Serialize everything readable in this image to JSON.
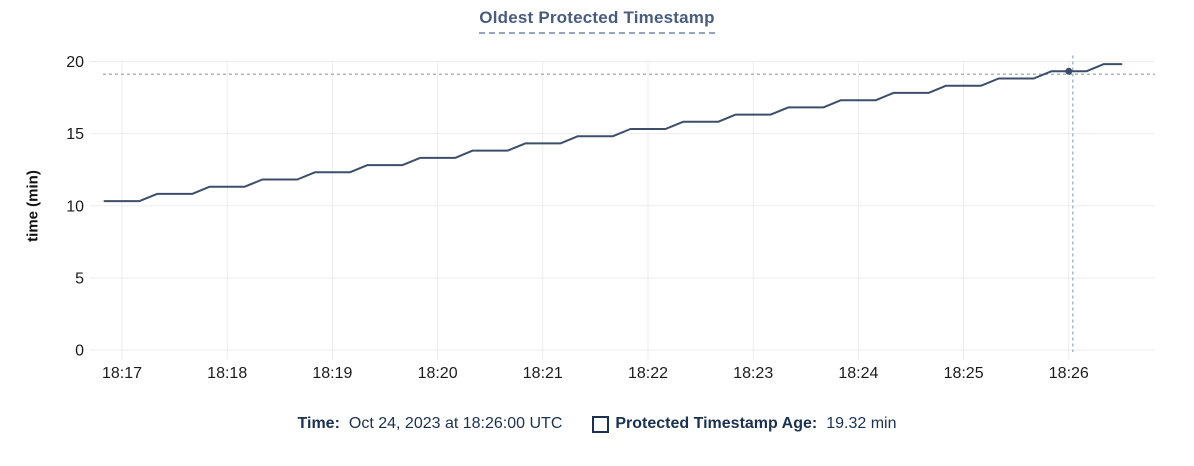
{
  "title": "Oldest Protected Timestamp",
  "y_axis_label": "time (min)",
  "legend": {
    "time_label": "Time:",
    "time_value": "Oct 24, 2023 at 18:26:00 UTC",
    "series_label": "Protected Timestamp Age:",
    "series_value": "19.32 min"
  },
  "colors": {
    "line": "#3d4e6c",
    "crosshair": "#a6b9c8",
    "grid": "#ededed",
    "title_text": "#4a5c7e",
    "title_underline": "#93a5c0",
    "legend_text": "#1b3150",
    "axis_text": "#1b1b1b"
  },
  "chart_data": {
    "type": "line",
    "title": "Oldest Protected Timestamp",
    "xlabel": "",
    "ylabel": "time (min)",
    "ylim": [
      0,
      20
    ],
    "y_ticks": [
      0,
      5,
      10,
      15,
      20
    ],
    "x_ticks": [
      "18:17",
      "18:18",
      "18:19",
      "18:20",
      "18:21",
      "18:22",
      "18:23",
      "18:24",
      "18:25",
      "18:26"
    ],
    "grid": true,
    "legend_position": "bottom",
    "series": [
      {
        "name": "Protected Timestamp Age",
        "unit": "min",
        "points": [
          [
            "18:16:50",
            10.32
          ],
          [
            "18:17:00",
            10.32
          ],
          [
            "18:17:10",
            10.32
          ],
          [
            "18:17:20",
            10.82
          ],
          [
            "18:17:30",
            10.82
          ],
          [
            "18:17:40",
            10.82
          ],
          [
            "18:17:50",
            11.32
          ],
          [
            "18:18:00",
            11.32
          ],
          [
            "18:18:10",
            11.32
          ],
          [
            "18:18:20",
            11.82
          ],
          [
            "18:18:30",
            11.82
          ],
          [
            "18:18:40",
            11.82
          ],
          [
            "18:18:50",
            12.32
          ],
          [
            "18:19:00",
            12.32
          ],
          [
            "18:19:10",
            12.32
          ],
          [
            "18:19:20",
            12.82
          ],
          [
            "18:19:30",
            12.82
          ],
          [
            "18:19:40",
            12.82
          ],
          [
            "18:19:50",
            13.32
          ],
          [
            "18:20:00",
            13.32
          ],
          [
            "18:20:10",
            13.32
          ],
          [
            "18:20:20",
            13.82
          ],
          [
            "18:20:30",
            13.82
          ],
          [
            "18:20:40",
            13.82
          ],
          [
            "18:20:50",
            14.32
          ],
          [
            "18:21:00",
            14.32
          ],
          [
            "18:21:10",
            14.32
          ],
          [
            "18:21:20",
            14.82
          ],
          [
            "18:21:30",
            14.82
          ],
          [
            "18:21:40",
            14.82
          ],
          [
            "18:21:50",
            15.32
          ],
          [
            "18:22:00",
            15.32
          ],
          [
            "18:22:10",
            15.32
          ],
          [
            "18:22:20",
            15.82
          ],
          [
            "18:22:30",
            15.82
          ],
          [
            "18:22:40",
            15.82
          ],
          [
            "18:22:50",
            16.32
          ],
          [
            "18:23:00",
            16.32
          ],
          [
            "18:23:10",
            16.32
          ],
          [
            "18:23:20",
            16.82
          ],
          [
            "18:23:30",
            16.82
          ],
          [
            "18:23:40",
            16.82
          ],
          [
            "18:23:50",
            17.32
          ],
          [
            "18:24:00",
            17.32
          ],
          [
            "18:24:10",
            17.32
          ],
          [
            "18:24:20",
            17.82
          ],
          [
            "18:24:30",
            17.82
          ],
          [
            "18:24:40",
            17.82
          ],
          [
            "18:24:50",
            18.32
          ],
          [
            "18:25:00",
            18.32
          ],
          [
            "18:25:10",
            18.32
          ],
          [
            "18:25:20",
            18.82
          ],
          [
            "18:25:30",
            18.82
          ],
          [
            "18:25:40",
            18.82
          ],
          [
            "18:25:50",
            19.32
          ],
          [
            "18:26:00",
            19.32
          ],
          [
            "18:26:10",
            19.32
          ],
          [
            "18:26:20",
            19.82
          ],
          [
            "18:26:30",
            19.82
          ]
        ]
      }
    ],
    "hover_point": {
      "time": "18:26:00",
      "value": 19.32,
      "time_label": "Oct 24, 2023 at 18:26:00 UTC",
      "value_label": "19.32 min"
    }
  }
}
